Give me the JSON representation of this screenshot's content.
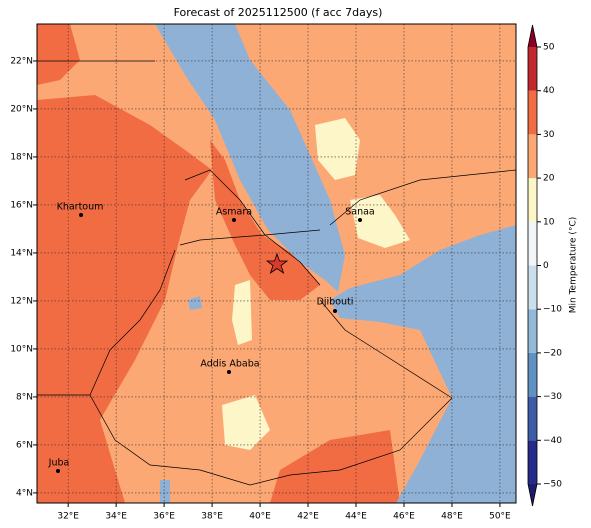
{
  "map": {
    "title": "Forecast of 2025112500 (f acc 7days)",
    "lonlim": [
      30.7,
      50.67
    ],
    "latlim": [
      3.58,
      23.54
    ],
    "lon_ticks": [
      {
        "value": 32,
        "label": "32°E"
      },
      {
        "value": 34,
        "label": "34°E"
      },
      {
        "value": 36,
        "label": "36°E"
      },
      {
        "value": 38,
        "label": "38°E"
      },
      {
        "value": 40,
        "label": "40°E"
      },
      {
        "value": 42,
        "label": "42°E"
      },
      {
        "value": 44,
        "label": "44°E"
      },
      {
        "value": 46,
        "label": "46°E"
      },
      {
        "value": 48,
        "label": "48°E"
      },
      {
        "value": 50,
        "label": "50°E"
      }
    ],
    "lat_ticks": [
      {
        "value": 4,
        "label": "4°N"
      },
      {
        "value": 6,
        "label": "6°N"
      },
      {
        "value": 8,
        "label": "8°N"
      },
      {
        "value": 10,
        "label": "10°N"
      },
      {
        "value": 12,
        "label": "12°N"
      },
      {
        "value": 14,
        "label": "14°N"
      },
      {
        "value": 16,
        "label": "16°N"
      },
      {
        "value": 18,
        "label": "18°N"
      },
      {
        "value": 20,
        "label": "20°N"
      },
      {
        "value": 22,
        "label": "22°N"
      }
    ],
    "grid": true,
    "cities": [
      "Khartoum",
      "Asmara",
      "Sanaa",
      "Djibouti",
      "Addis Ababa",
      "Juba"
    ],
    "colorbar": {
      "label": "Min Temperature (°C)",
      "lim": [
        -50,
        50
      ],
      "ticks": [
        {
          "value": -50,
          "label": "−50"
        },
        {
          "value": -40,
          "label": "−40"
        },
        {
          "value": -30,
          "label": "−30"
        },
        {
          "value": -20,
          "label": "−20"
        },
        {
          "value": -10,
          "label": "−10"
        },
        0,
        10,
        20,
        30,
        40,
        50
      ],
      "colors": [
        "#262a8a",
        "#3d5da8",
        "#6091c3",
        "#94b8d8",
        "#cadfec",
        "#f1f5f7",
        "#fdf6c8",
        "#fca874",
        "#f16b43",
        "#c1272c"
      ],
      "under_color": "#1c1c6b",
      "over_color": "#8a0024"
    }
  }
}
